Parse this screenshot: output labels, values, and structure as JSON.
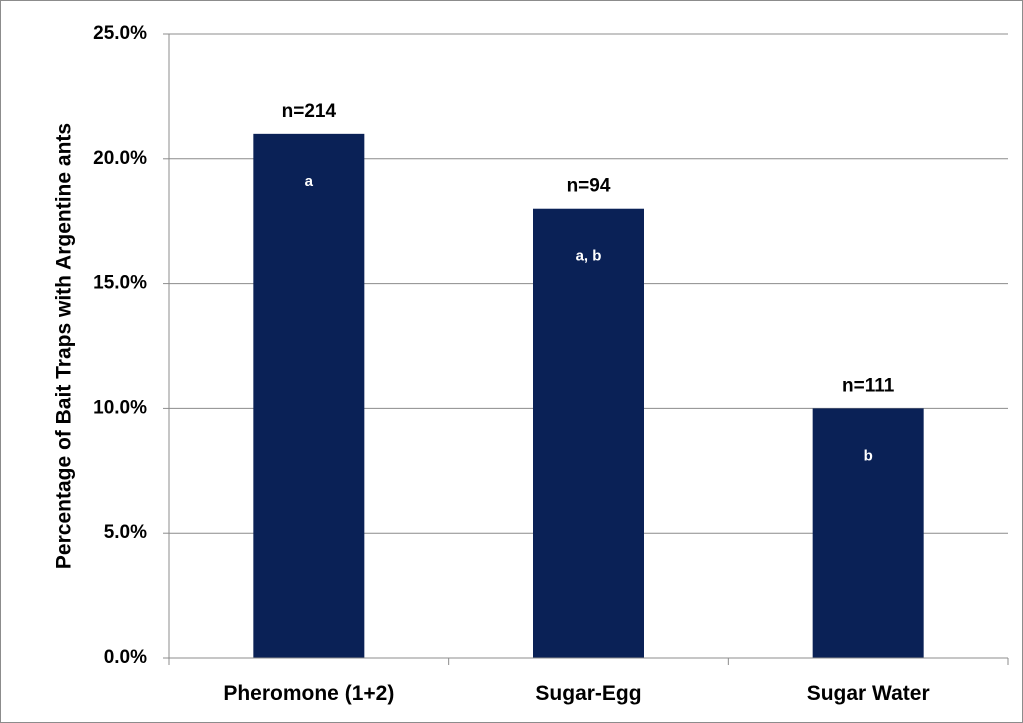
{
  "chart_data": {
    "type": "bar",
    "title": "",
    "xlabel": "",
    "ylabel": "Percentage of Bait Traps with Argentine ants",
    "categories": [
      "Pheromone (1+2)",
      "Sugar-Egg",
      "Sugar Water"
    ],
    "values": [
      21.0,
      18.0,
      10.0
    ],
    "value_format": "percent",
    "ylim": [
      0,
      25
    ],
    "yticks": [
      0,
      5,
      10,
      15,
      20,
      25
    ],
    "ytick_labels": [
      "0.0%",
      "5.0%",
      "10.0%",
      "15.0%",
      "20.0%",
      "25.0%"
    ],
    "sample_size_labels": [
      "n=214",
      "n=94",
      "n=111"
    ],
    "significance_labels": [
      "a",
      "a, b",
      "b"
    ],
    "grid": true,
    "legend": "none",
    "bar_color": "#0a2156",
    "gridline_color": "#8c8c8c"
  }
}
